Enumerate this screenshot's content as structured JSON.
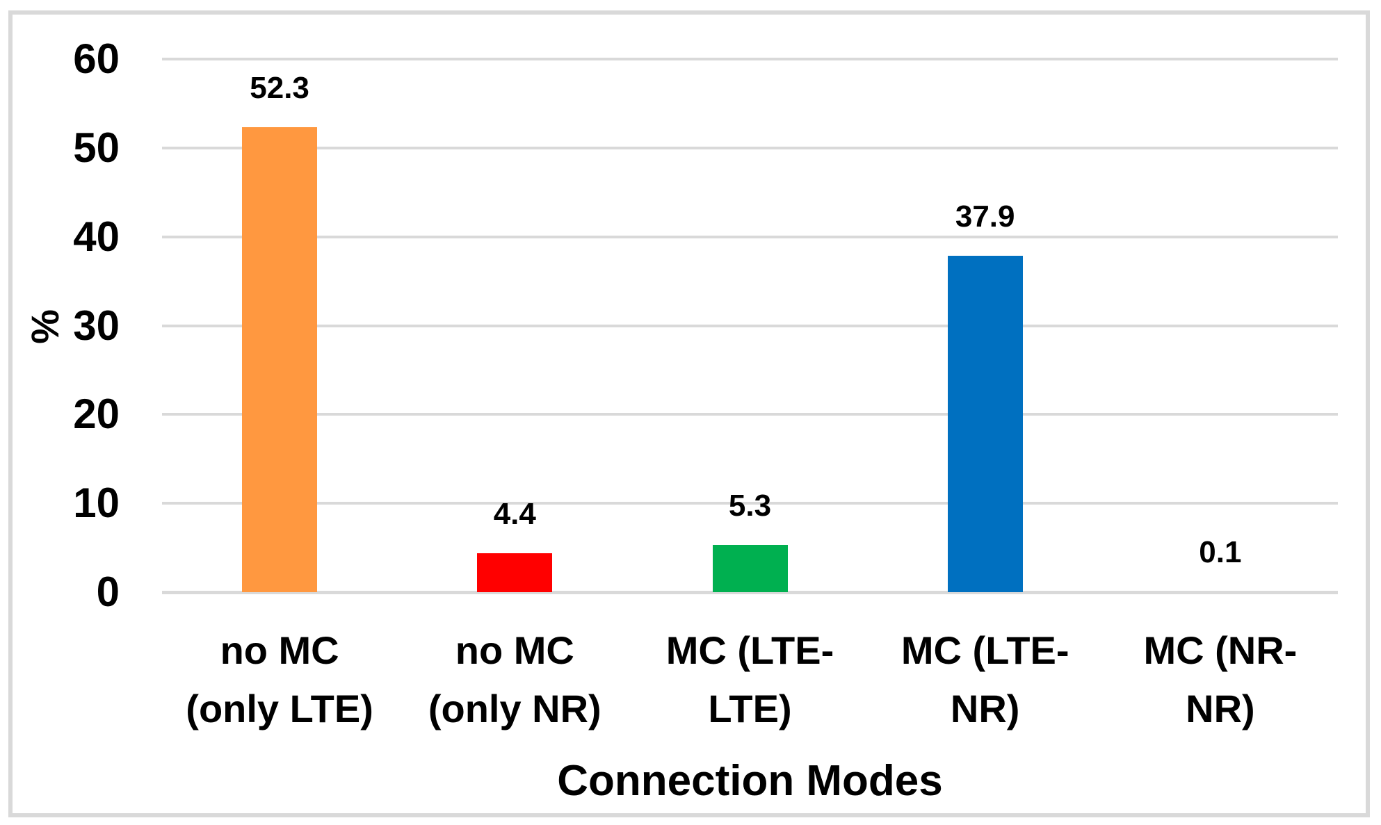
{
  "figure": {
    "background_color": "#FFFFFF",
    "border_color": "#D9D9D9"
  },
  "chart_data": {
    "type": "bar",
    "title": "",
    "xlabel": "Connection Modes",
    "ylabel": "%",
    "categories": [
      "no MC (only LTE)",
      "no MC (only NR)",
      "MC (LTE-LTE)",
      "MC (LTE-NR)",
      "MC (NR-NR)"
    ],
    "category_lines": [
      [
        "no MC",
        "(only LTE)"
      ],
      [
        "no MC",
        "(only NR)"
      ],
      [
        "MC (LTE-",
        "LTE)"
      ],
      [
        "MC (LTE-",
        "NR)"
      ],
      [
        "MC (NR-",
        "NR)"
      ]
    ],
    "values": [
      52.3,
      4.4,
      5.3,
      37.9,
      0.1
    ],
    "data_labels": [
      "52.3",
      "4.4",
      "5.3",
      "37.9",
      "0.1"
    ],
    "bar_colors": [
      "#FF9840",
      "#FF0000",
      "#00B050",
      "#0070C0",
      null
    ],
    "ylim": [
      0,
      60
    ],
    "yticks": [
      0,
      10,
      20,
      30,
      40,
      50,
      60
    ],
    "grid": true,
    "gridline_color": "#D9D9D9",
    "legend": "none"
  }
}
